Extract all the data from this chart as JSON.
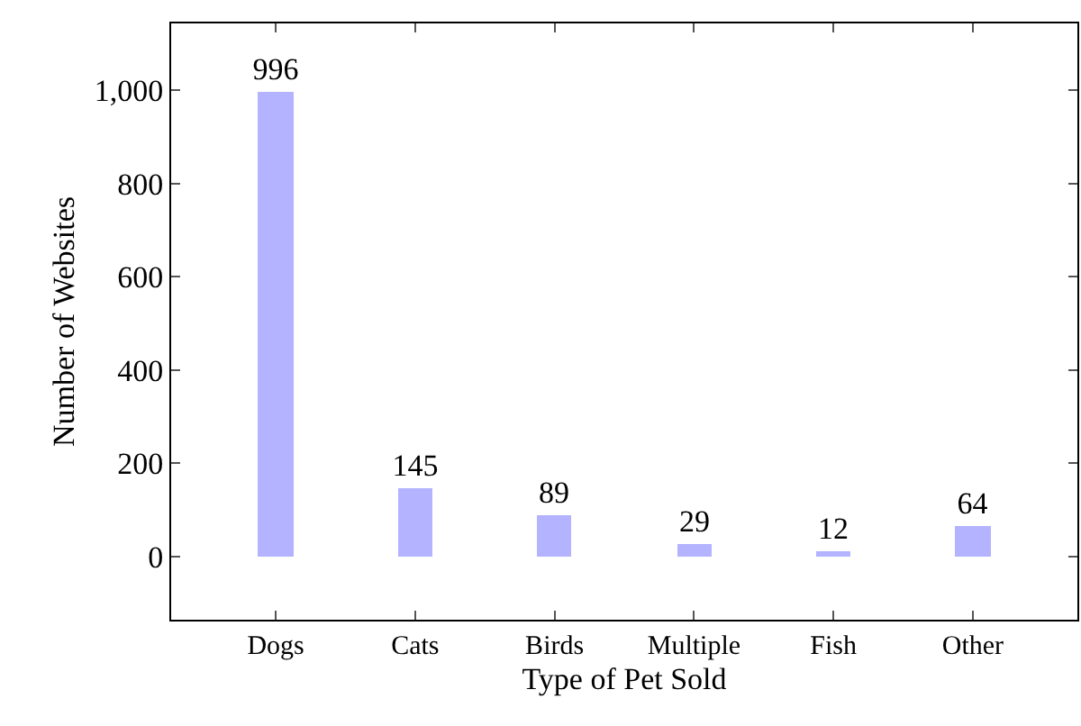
{
  "chart_data": {
    "type": "bar",
    "xlabel": "Type of Pet Sold",
    "ylabel": "Number of Websites",
    "categories": [
      "Dogs",
      "Cats",
      "Birds",
      "Multiple",
      "Fish",
      "Other"
    ],
    "values": [
      996,
      145,
      89,
      29,
      12,
      64
    ],
    "color": "#b3b3ff",
    "ylim": [
      -135,
      1143
    ],
    "yticks": [
      0,
      200,
      400,
      600,
      800,
      {
        "value": 1000,
        "label": "1,000"
      }
    ],
    "data_labels": true,
    "grid": false
  }
}
